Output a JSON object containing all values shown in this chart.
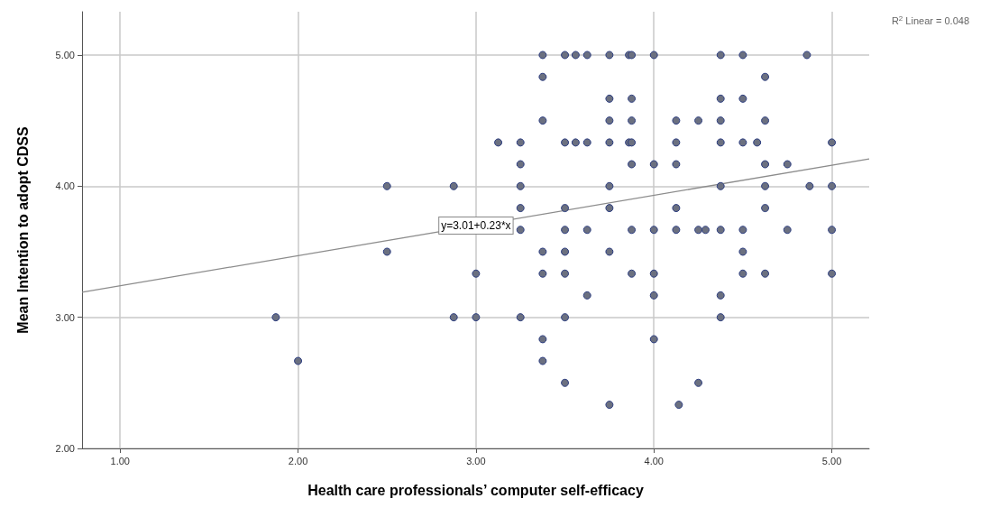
{
  "chart_data": {
    "type": "scatter",
    "xlabel": "Health care professionals’ computer self-efficacy",
    "ylabel": "Mean Intention to adopt CDSS",
    "xlim": [
      0.786,
      5.21
    ],
    "ylim": [
      2,
      5.33
    ],
    "xticks": [
      {
        "value": 1,
        "label": "1.00"
      },
      {
        "value": 2,
        "label": "2.00"
      },
      {
        "value": 3,
        "label": "3.00"
      },
      {
        "value": 4,
        "label": "4.00"
      },
      {
        "value": 5,
        "label": "5.00"
      }
    ],
    "yticks": [
      {
        "value": 2,
        "label": "2.00"
      },
      {
        "value": 3,
        "label": "3.00"
      },
      {
        "value": 4,
        "label": "4.00"
      },
      {
        "value": 5,
        "label": "5.00"
      }
    ],
    "grid": true,
    "marker": "circle",
    "annotations": [
      "R$^{2}$ Linear = 0.048",
      {
        "text": "y=3.01+0.23*x",
        "x": 3.0,
        "y": 3.7
      }
    ],
    "series": [
      {
        "color": "#6b7080",
        "x": [
          3.375,
          3.5,
          3.56,
          3.625,
          3.75,
          3.86,
          3.875,
          4.0,
          4.375,
          4.5,
          4.86,
          3.375,
          4.625,
          3.75,
          3.875,
          4.375,
          4.5,
          3.375,
          3.75,
          3.875,
          4.125,
          4.25,
          4.375,
          4.625,
          3.125,
          3.25,
          3.5,
          3.56,
          3.625,
          3.75,
          3.86,
          3.875,
          4.125,
          4.375,
          4.5,
          4.58,
          5.0,
          3.25,
          3.875,
          4.0,
          4.125,
          4.625,
          4.75,
          2.5,
          2.875,
          3.25,
          3.75,
          4.375,
          4.625,
          4.875,
          5.0,
          3.25,
          3.5,
          3.75,
          4.125,
          4.625,
          3.25,
          3.5,
          3.625,
          3.875,
          4.0,
          4.125,
          4.25,
          4.29,
          4.375,
          4.5,
          4.75,
          5.0,
          2.5,
          3.375,
          3.5,
          3.75,
          4.5,
          3.0,
          3.375,
          3.5,
          3.875,
          4.0,
          4.5,
          4.625,
          5.0,
          3.625,
          4.0,
          4.375,
          1.875,
          2.875,
          3.0,
          3.25,
          3.5,
          4.375,
          3.375,
          4.0,
          2.0,
          3.375,
          3.5,
          4.25,
          3.75,
          4.14
        ],
        "values": [
          5,
          5,
          5,
          5,
          5,
          5,
          5,
          5,
          5,
          5,
          5,
          4.833,
          4.833,
          4.667,
          4.667,
          4.667,
          4.667,
          4.5,
          4.5,
          4.5,
          4.5,
          4.5,
          4.5,
          4.5,
          4.333,
          4.333,
          4.333,
          4.333,
          4.333,
          4.333,
          4.333,
          4.333,
          4.333,
          4.333,
          4.333,
          4.333,
          4.333,
          4.167,
          4.167,
          4.167,
          4.167,
          4.167,
          4.167,
          4,
          4,
          4,
          4,
          4,
          4,
          4,
          4,
          3.833,
          3.833,
          3.833,
          3.833,
          3.833,
          3.667,
          3.667,
          3.667,
          3.667,
          3.667,
          3.667,
          3.667,
          3.667,
          3.667,
          3.667,
          3.667,
          3.667,
          3.5,
          3.5,
          3.5,
          3.5,
          3.5,
          3.333,
          3.333,
          3.333,
          3.333,
          3.333,
          3.333,
          3.333,
          3.333,
          3.167,
          3.167,
          3.167,
          3,
          3,
          3,
          3,
          3,
          3,
          2.833,
          2.833,
          2.667,
          2.667,
          2.5,
          2.5,
          2.333,
          2.333
        ]
      },
      {
        "type": "line",
        "color": "#8c8c8c",
        "x": [
          0.786,
          5.21
        ],
        "values": [
          3.191,
          4.208
        ],
        "marker": "none"
      }
    ]
  }
}
